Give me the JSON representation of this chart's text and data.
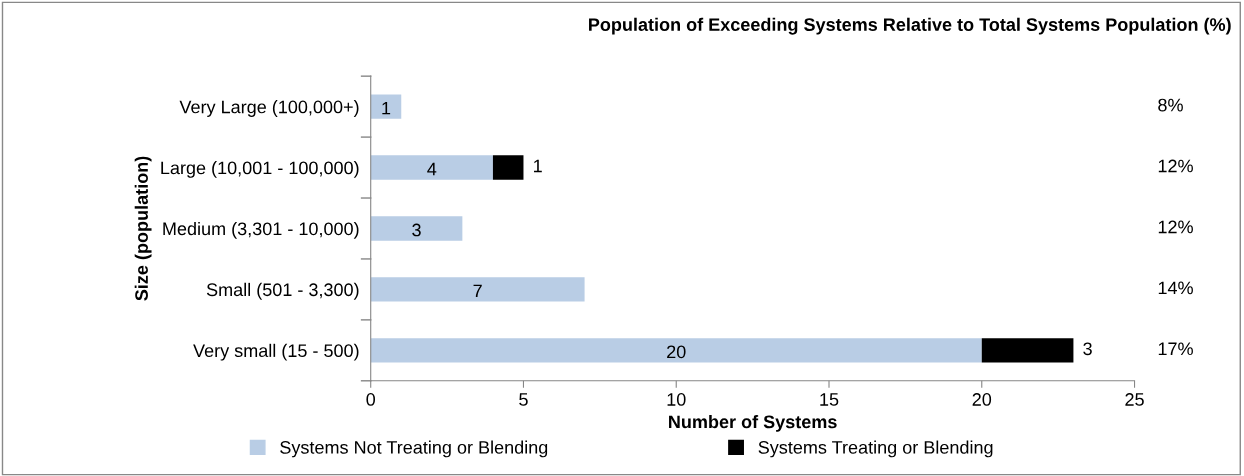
{
  "chart_data": {
    "type": "bar",
    "orientation": "horizontal",
    "stacked": true,
    "title": "Population of Exceeding Systems Relative to Total Systems Population (%)",
    "xlabel": "Number of Systems",
    "ylabel": "Size (population)",
    "categories": [
      "Very Large (100,000+)",
      "Large (10,001 - 100,000)",
      "Medium (3,301 - 10,000)",
      "Small (501 - 3,300)",
      "Very small (15 - 500)"
    ],
    "series": [
      {
        "name": "Systems Not Treating or Blending",
        "color": "#b9cde5",
        "values": [
          1,
          4,
          3,
          7,
          20
        ]
      },
      {
        "name": "Systems Treating or Blending",
        "color": "#000000",
        "values": [
          null,
          1,
          null,
          null,
          3
        ]
      }
    ],
    "xlim": [
      0,
      25
    ],
    "xticks": [
      0,
      5,
      10,
      15,
      20,
      25
    ],
    "grid": false,
    "legend": "bottom",
    "data_labels": true,
    "annotations": [
      "8%",
      "12%",
      "12%",
      "14%",
      "17%"
    ]
  }
}
